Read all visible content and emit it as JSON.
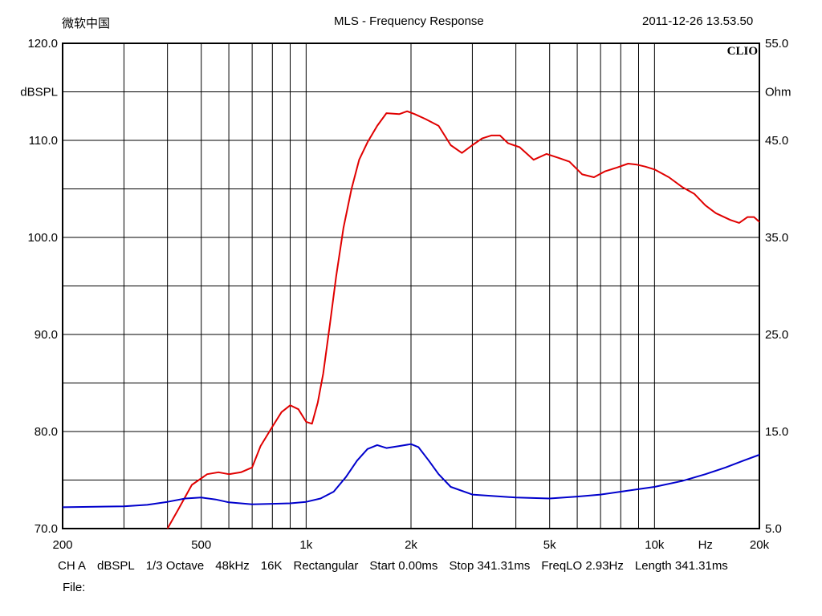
{
  "header": {
    "left": "微软中国",
    "center": "MLS - Frequency Response",
    "right": "2011-12-26 13.53.50"
  },
  "chart_data": {
    "type": "line",
    "brand_mark": "CLIO",
    "x_scale": "log",
    "xlim": [
      200,
      20000
    ],
    "x_ticks": [
      {
        "value": 200,
        "label": "200"
      },
      {
        "value": 500,
        "label": "500"
      },
      {
        "value": 1000,
        "label": "1k"
      },
      {
        "value": 2000,
        "label": "2k"
      },
      {
        "value": 5000,
        "label": "5k"
      },
      {
        "value": 10000,
        "label": "10k"
      },
      {
        "value": 20000,
        "label": "20k"
      }
    ],
    "x_unit_label": "Hz",
    "x_unit_value": 14000,
    "y_left": {
      "label": "dBSPL",
      "lim": [
        70,
        120
      ],
      "ticks": [
        {
          "value": 120,
          "label": "120.0"
        },
        {
          "value": 110,
          "label": "110.0"
        },
        {
          "value": 100,
          "label": "100.0"
        },
        {
          "value": 90,
          "label": "90.0"
        },
        {
          "value": 80,
          "label": "80.0"
        },
        {
          "value": 70,
          "label": "70.0"
        }
      ]
    },
    "y_right": {
      "label": "Ohm",
      "lim": [
        5,
        55
      ],
      "ticks": [
        {
          "value": 55,
          "label": "55.0"
        },
        {
          "value": 45,
          "label": "45.0"
        },
        {
          "value": 35,
          "label": "35.0"
        },
        {
          "value": 25,
          "label": "25.0"
        },
        {
          "value": 15,
          "label": "15.0"
        },
        {
          "value": 5,
          "label": "5.0"
        }
      ]
    },
    "grid": true,
    "colors": {
      "frequency_response": "#e00000",
      "impedance": "#0000cc",
      "grid": "#000000"
    },
    "series": [
      {
        "axis": "left",
        "color": "#e00000",
        "points": [
          [
            400,
            70
          ],
          [
            430,
            72
          ],
          [
            470,
            74.5
          ],
          [
            520,
            75.6
          ],
          [
            560,
            75.8
          ],
          [
            600,
            75.6
          ],
          [
            650,
            75.8
          ],
          [
            700,
            76.3
          ],
          [
            740,
            78.5
          ],
          [
            800,
            80.5
          ],
          [
            850,
            82
          ],
          [
            900,
            82.7
          ],
          [
            950,
            82.3
          ],
          [
            1000,
            81
          ],
          [
            1040,
            80.8
          ],
          [
            1080,
            83
          ],
          [
            1120,
            86
          ],
          [
            1170,
            91
          ],
          [
            1220,
            96
          ],
          [
            1280,
            101
          ],
          [
            1350,
            105
          ],
          [
            1420,
            108
          ],
          [
            1500,
            109.8
          ],
          [
            1600,
            111.5
          ],
          [
            1700,
            112.8
          ],
          [
            1850,
            112.7
          ],
          [
            1950,
            113
          ],
          [
            2050,
            112.7
          ],
          [
            2200,
            112.2
          ],
          [
            2400,
            111.5
          ],
          [
            2600,
            109.5
          ],
          [
            2800,
            108.7
          ],
          [
            3000,
            109.5
          ],
          [
            3200,
            110.2
          ],
          [
            3400,
            110.5
          ],
          [
            3600,
            110.5
          ],
          [
            3800,
            109.7
          ],
          [
            4100,
            109.3
          ],
          [
            4500,
            108
          ],
          [
            4900,
            108.6
          ],
          [
            5300,
            108.2
          ],
          [
            5700,
            107.8
          ],
          [
            6200,
            106.5
          ],
          [
            6700,
            106.2
          ],
          [
            7200,
            106.8
          ],
          [
            7800,
            107.2
          ],
          [
            8400,
            107.6
          ],
          [
            8900,
            107.5
          ],
          [
            9400,
            107.3
          ],
          [
            10000,
            107
          ],
          [
            11000,
            106.2
          ],
          [
            12000,
            105.2
          ],
          [
            13000,
            104.5
          ],
          [
            14000,
            103.3
          ],
          [
            15000,
            102.5
          ],
          [
            16500,
            101.8
          ],
          [
            17500,
            101.5
          ],
          [
            18500,
            102.1
          ],
          [
            19300,
            102.1
          ],
          [
            20000,
            101.6
          ]
        ]
      },
      {
        "axis": "right",
        "color": "#0000cc",
        "points": [
          [
            200,
            7.2
          ],
          [
            300,
            7.3
          ],
          [
            350,
            7.45
          ],
          [
            400,
            7.75
          ],
          [
            450,
            8.1
          ],
          [
            500,
            8.2
          ],
          [
            550,
            8.0
          ],
          [
            600,
            7.7
          ],
          [
            700,
            7.5
          ],
          [
            800,
            7.55
          ],
          [
            900,
            7.6
          ],
          [
            1000,
            7.75
          ],
          [
            1100,
            8.1
          ],
          [
            1200,
            8.8
          ],
          [
            1300,
            10.3
          ],
          [
            1400,
            12.0
          ],
          [
            1500,
            13.2
          ],
          [
            1600,
            13.6
          ],
          [
            1700,
            13.3
          ],
          [
            1850,
            13.5
          ],
          [
            2000,
            13.7
          ],
          [
            2100,
            13.4
          ],
          [
            2250,
            12.0
          ],
          [
            2400,
            10.6
          ],
          [
            2600,
            9.3
          ],
          [
            3000,
            8.5
          ],
          [
            4000,
            8.2
          ],
          [
            5000,
            8.1
          ],
          [
            6000,
            8.3
          ],
          [
            7000,
            8.5
          ],
          [
            8000,
            8.8
          ],
          [
            10000,
            9.3
          ],
          [
            12000,
            9.9
          ],
          [
            14000,
            10.6
          ],
          [
            16000,
            11.3
          ],
          [
            18000,
            12.0
          ],
          [
            20000,
            12.6
          ]
        ]
      }
    ]
  },
  "footer": {
    "line1": [
      "CH A",
      "dBSPL",
      "1/3 Octave",
      "48kHz",
      "16K",
      "Rectangular",
      "Start 0.00ms",
      "Stop 341.31ms",
      "FreqLO 2.93Hz",
      "Length 341.31ms"
    ],
    "file_label": "File:"
  }
}
